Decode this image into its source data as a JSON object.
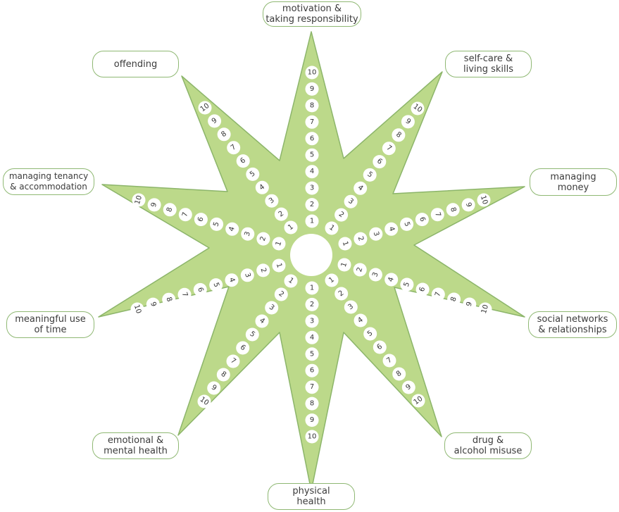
{
  "title": "",
  "colors": {
    "star_fill": "#bcd98a",
    "star_stroke": "#8cb56a",
    "label_border": "#8fb873",
    "text": "#3b3b3b"
  },
  "scale_values": [
    "1",
    "2",
    "3",
    "4",
    "5",
    "6",
    "7",
    "8",
    "9",
    "10"
  ],
  "areas": [
    {
      "key": "motivation",
      "lines": [
        "motivation &",
        "taking responsibility"
      ]
    },
    {
      "key": "self-care",
      "lines": [
        "self-care &",
        "living skills"
      ]
    },
    {
      "key": "managing-money",
      "lines": [
        "managing",
        "money"
      ]
    },
    {
      "key": "social-networks",
      "lines": [
        "social networks",
        "& relationships"
      ]
    },
    {
      "key": "drug-alcohol",
      "lines": [
        "drug &",
        "alcohol misuse"
      ]
    },
    {
      "key": "physical-health",
      "lines": [
        "physical",
        "health"
      ]
    },
    {
      "key": "emotional-health",
      "lines": [
        "emotional &",
        "mental health"
      ]
    },
    {
      "key": "meaningful-use",
      "lines": [
        "meaningful use",
        "of time"
      ]
    },
    {
      "key": "tenancy",
      "lines": [
        "managing tenancy",
        "& accommodation"
      ]
    },
    {
      "key": "offending",
      "lines": [
        "offending"
      ]
    }
  ]
}
